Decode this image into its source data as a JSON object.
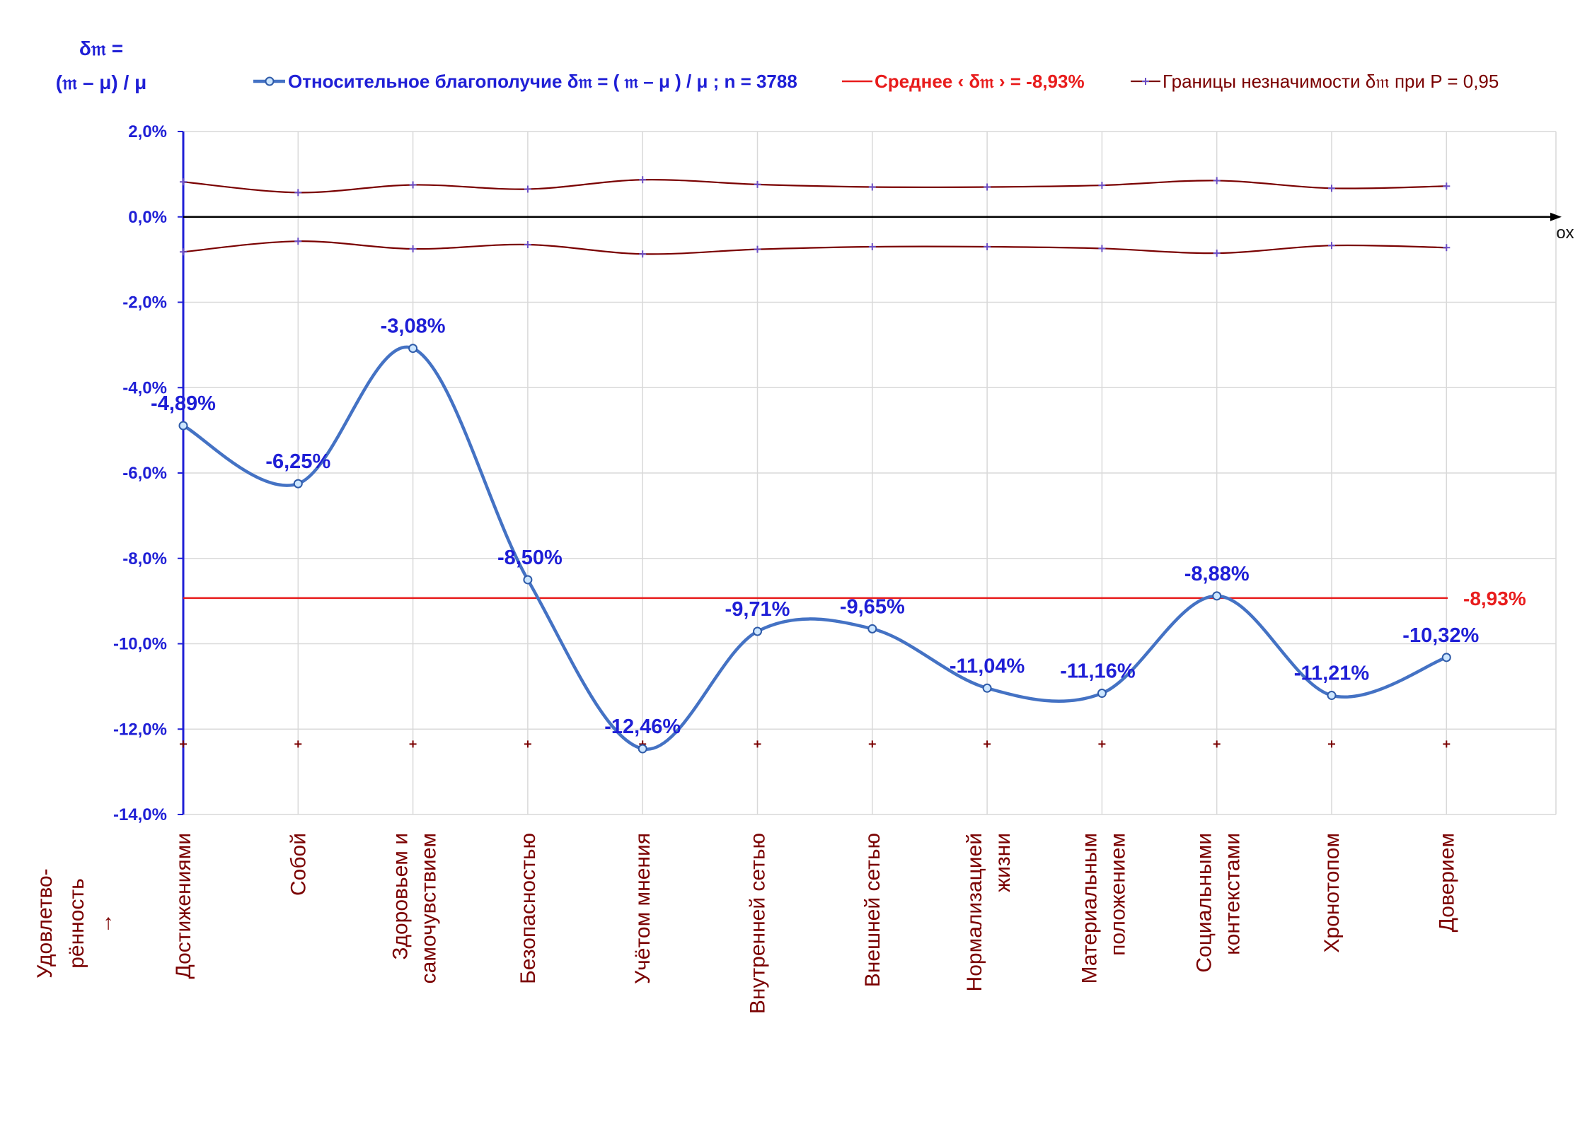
{
  "chart_data": {
    "type": "line",
    "y_axis_title_line1": "δ𝔪 =",
    "y_axis_title_line2": "(𝔪 – μ) / μ",
    "x_axis_name": "ox",
    "x_row_title_line1": "Удовлетво-",
    "x_row_title_line2": "рённость",
    "x_row_title_arrow": "→",
    "ylim": [
      -14,
      2
    ],
    "y_ticks": [
      2,
      0,
      -2,
      -4,
      -6,
      -8,
      -10,
      -12,
      -14
    ],
    "y_tick_labels": [
      "2,0%",
      "0,0%",
      "-2,0%",
      "-4,0%",
      "-6,0%",
      "-8,0%",
      "-10,0%",
      "-12,0%",
      "-14,0%"
    ],
    "grid": true,
    "legend_position": "top",
    "categories": [
      [
        "Достижениями"
      ],
      [
        "Собой"
      ],
      [
        "Здоровьем и",
        "самочувствием"
      ],
      [
        "Безопасностью"
      ],
      [
        "Учётом мнения"
      ],
      [
        "Внутренней сетью"
      ],
      [
        "Внешней сетью"
      ],
      [
        "Нормализацией",
        "жизни"
      ],
      [
        "Материальным",
        "положением"
      ],
      [
        "Социальными",
        "контекстами"
      ],
      [
        "Хронотопом"
      ],
      [
        "Доверием"
      ]
    ],
    "series": [
      {
        "name": "Относительное благополучие δ𝔪 = ( 𝔪 – μ ) / μ ; n = 3788",
        "color": "#4472c4",
        "values": [
          -4.89,
          -6.25,
          -3.08,
          -8.5,
          -12.46,
          -9.71,
          -9.65,
          -11.04,
          -11.16,
          -8.88,
          -11.21,
          -10.32
        ],
        "data_labels": [
          "-4,89%",
          "-6,25%",
          "-3,08%",
          "-8,50%",
          "-12,46%",
          "-9,71%",
          "-9,65%",
          "-11,04%",
          "-11,16%",
          "-8,88%",
          "-11,21%",
          "-10,32%"
        ]
      },
      {
        "name": "Среднее ‹ δ𝔪 › = -8,93%",
        "color": "#e81c1c",
        "value": -8.93,
        "label": "-8,93%"
      },
      {
        "name": "Границы незначимости δ𝔪 при P = 0,95",
        "color": "#7a0000",
        "upper": [
          0.82,
          0.57,
          0.75,
          0.65,
          0.87,
          0.76,
          0.7,
          0.7,
          0.74,
          0.85,
          0.67,
          0.72
        ],
        "lower": [
          -0.82,
          -0.57,
          -0.75,
          -0.65,
          -0.87,
          -0.76,
          -0.7,
          -0.7,
          -0.74,
          -0.85,
          -0.67,
          -0.72
        ],
        "marker_row_value": -12.35
      }
    ]
  }
}
